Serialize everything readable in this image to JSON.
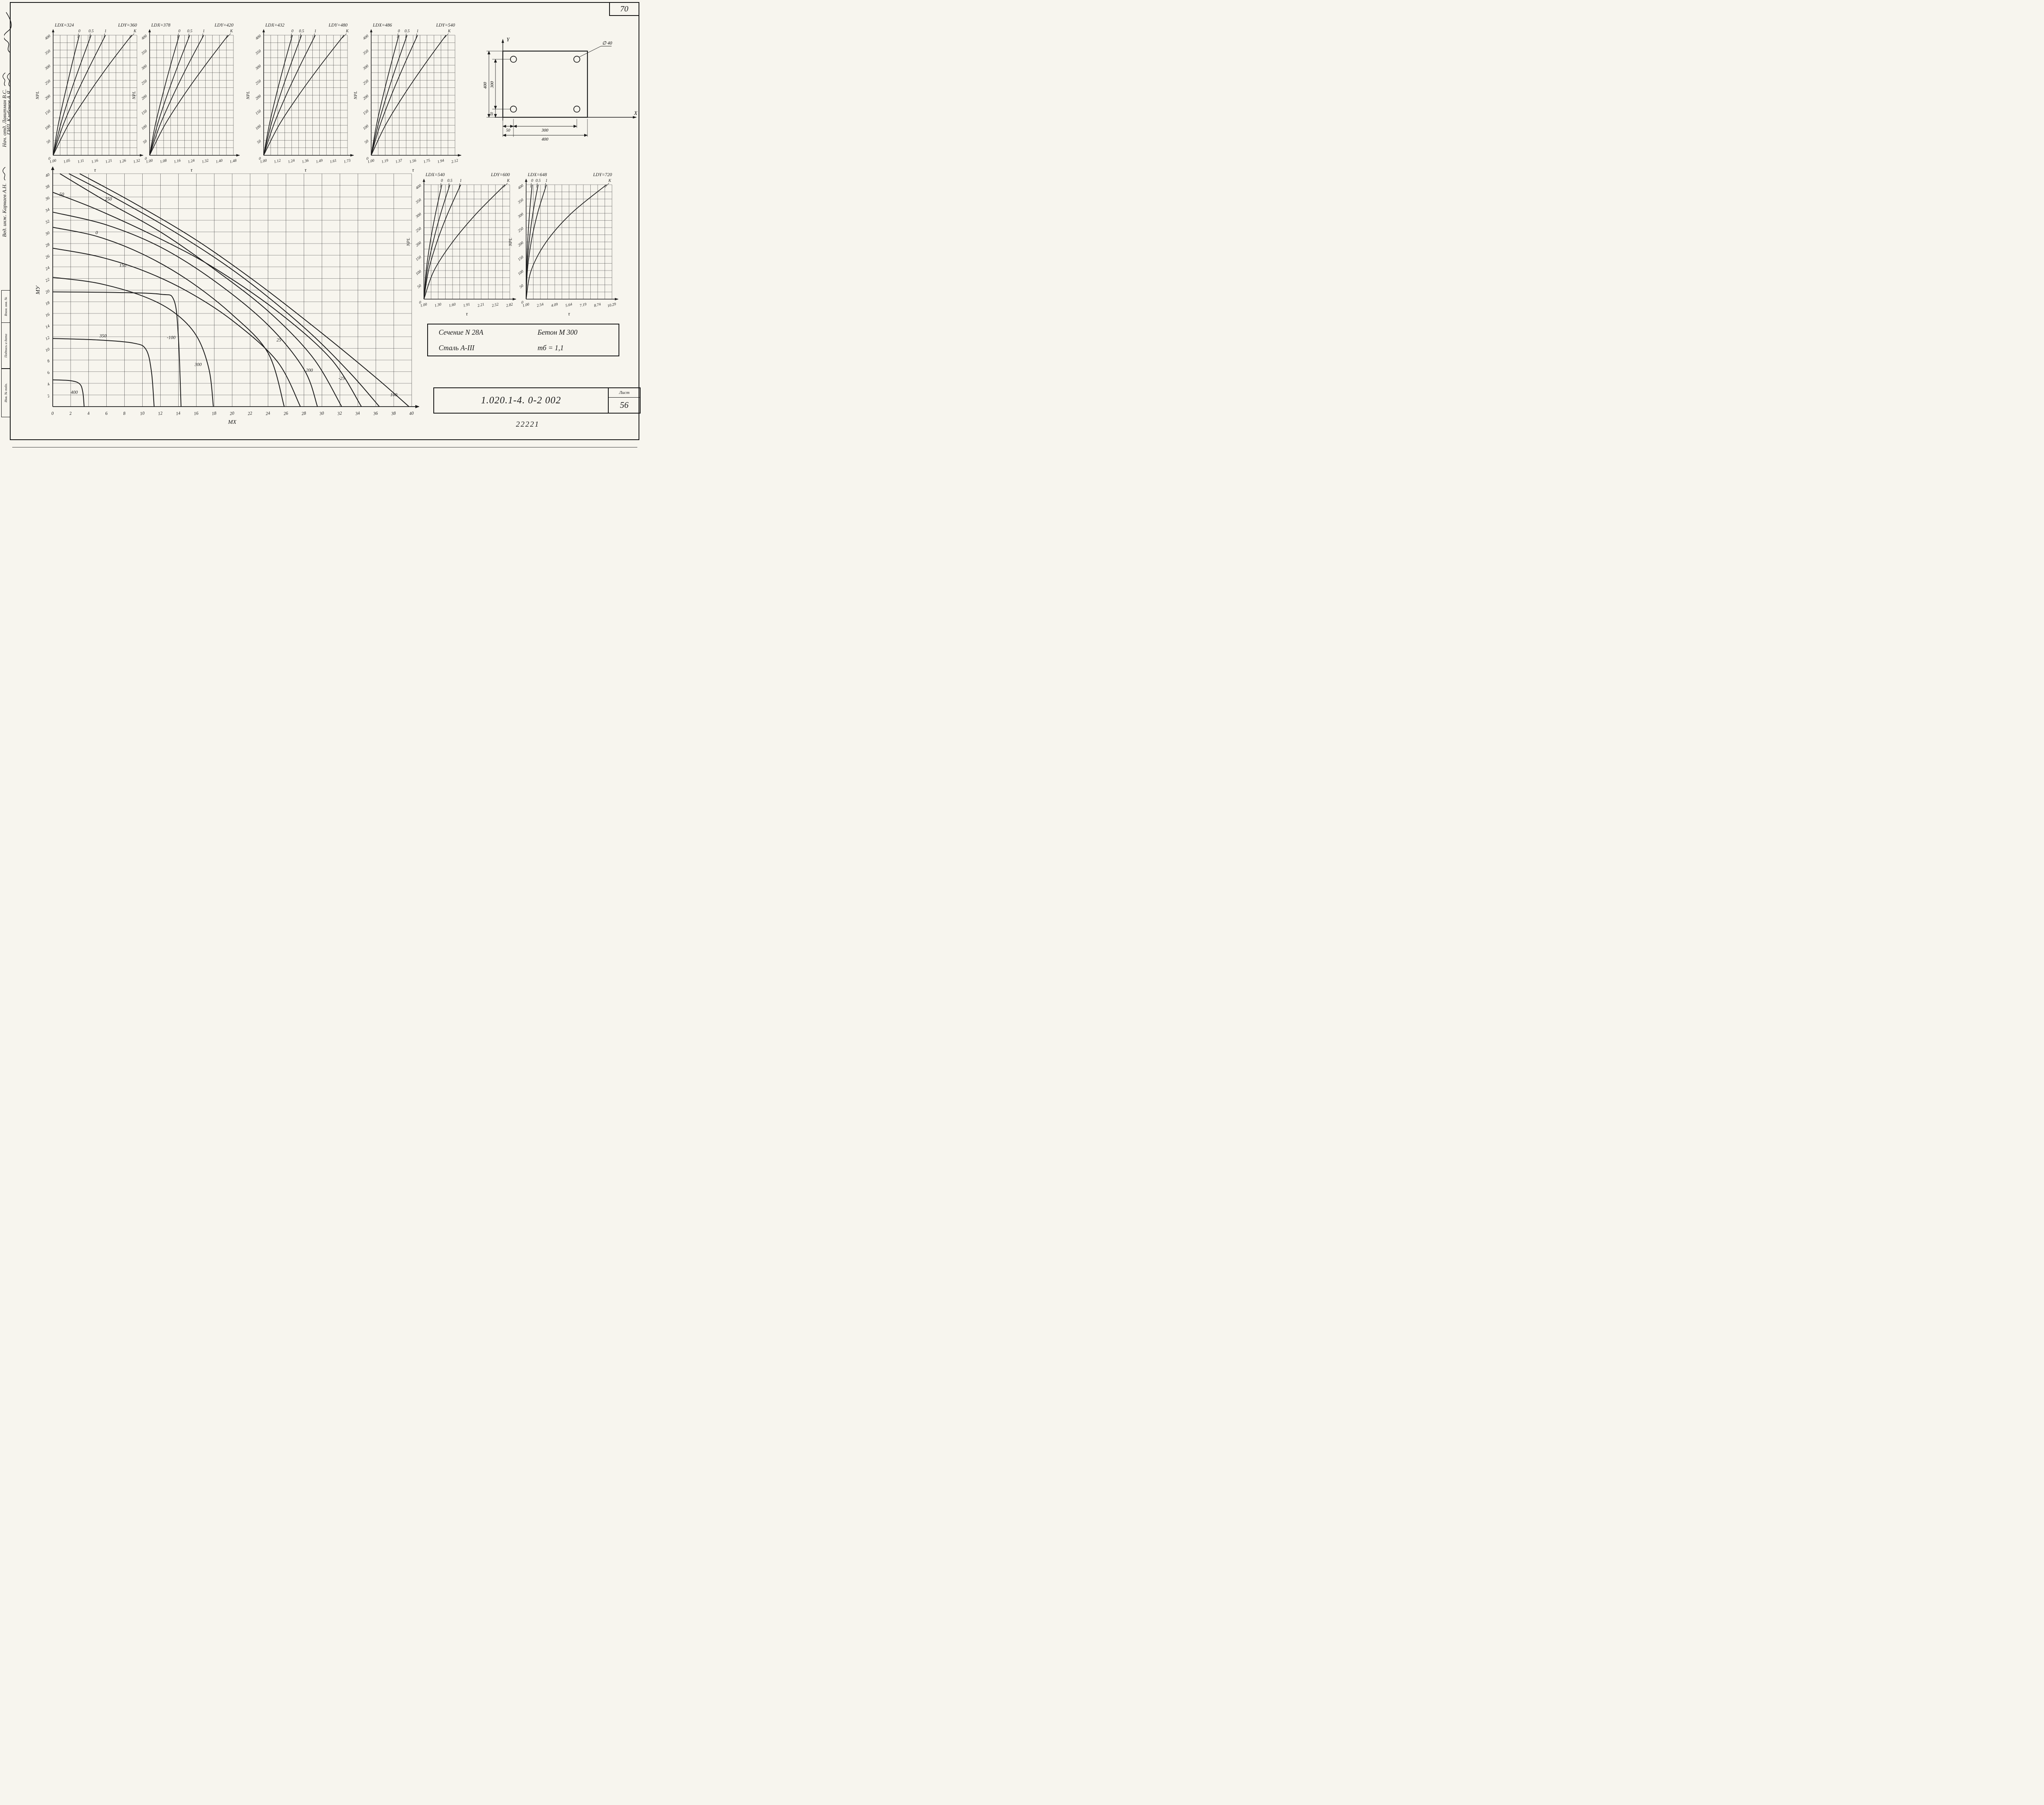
{
  "page": {
    "sheet_number": "70",
    "doc_number": "1.020.1-4. 0-2 002",
    "list_label": "Лист",
    "list_number": "56",
    "archive_number": "22221"
  },
  "left_margin": {
    "signatures": [
      {
        "text": "Нач. отд.   Лавитман В.С."
      },
      {
        "text": "Вед. инж.   Карнаев А.Н."
      },
      {
        "text": "ГИП.   Клебанов А.Я."
      }
    ],
    "stamp_cells": [
      "Взам. инв. №",
      "Подпись и дата",
      "Инв. № подл."
    ]
  },
  "info_box": {
    "cells": [
      "Сечение  N 28А",
      "Бетон  М 300",
      "Сталь  А-III",
      "mб = 1,1"
    ]
  },
  "section_diagram": {
    "axis_x": "X",
    "axis_y": "Y",
    "rebar_note": "∅ 40",
    "dims": {
      "height": "400",
      "inner_h": "300",
      "offset_y": "50",
      "offset_x": "50",
      "inner_w": "300",
      "width": "400"
    }
  },
  "chart_data": [
    {
      "id": "k1",
      "type": "line",
      "kind": "k-small",
      "title_left": "LDX=324",
      "title_right": "LDY=360",
      "xlabel": "τ",
      "ylabel": "NPL",
      "origin_label": "0",
      "x_range": [
        1.0,
        1.32
      ],
      "y_range": [
        0,
        400
      ],
      "x_ticks": [
        "1.00",
        "1.05",
        "1.11",
        "1.16",
        "1.21",
        "1.26",
        "1.32"
      ],
      "y_ticks": [
        50,
        100,
        150,
        200,
        250,
        300,
        350,
        400
      ],
      "series_y": [
        0,
        100,
        200,
        300,
        400
      ],
      "series": [
        {
          "name": "0",
          "x": [
            1.0,
            1.019,
            1.044,
            1.071,
            1.1
          ]
        },
        {
          "name": "0.5",
          "x": [
            1.0,
            1.028,
            1.063,
            1.103,
            1.145
          ]
        },
        {
          "name": "1",
          "x": [
            1.0,
            1.038,
            1.087,
            1.142,
            1.2
          ]
        },
        {
          "name": "К",
          "x": [
            1.0,
            1.057,
            1.131,
            1.212,
            1.3
          ]
        }
      ]
    },
    {
      "id": "k2",
      "type": "line",
      "kind": "k-small",
      "title_left": "LDX=378",
      "title_right": "LDY=420",
      "xlabel": "τ",
      "ylabel": "NPL",
      "origin_label": "0",
      "x_range": [
        1.0,
        1.48
      ],
      "y_range": [
        0,
        400
      ],
      "x_ticks": [
        "1.00",
        "1.08",
        "1.16",
        "1.24",
        "1.32",
        "1.40",
        "1.48"
      ],
      "y_ticks": [
        50,
        100,
        150,
        200,
        250,
        300,
        350,
        400
      ],
      "series_y": [
        0,
        100,
        200,
        300,
        400
      ],
      "series": [
        {
          "name": "0",
          "x": [
            1.0,
            1.032,
            1.074,
            1.12,
            1.17
          ]
        },
        {
          "name": "0.5",
          "x": [
            1.0,
            1.044,
            1.1,
            1.163,
            1.23
          ]
        },
        {
          "name": "1",
          "x": [
            1.0,
            1.059,
            1.135,
            1.219,
            1.31
          ]
        },
        {
          "name": "К",
          "x": [
            1.0,
            1.086,
            1.196,
            1.319,
            1.45
          ]
        }
      ]
    },
    {
      "id": "k3",
      "type": "line",
      "kind": "k-small",
      "title_left": "LDX=432",
      "title_right": "LDY=480",
      "xlabel": "τ",
      "ylabel": "NPL",
      "origin_label": "0",
      "x_range": [
        1.0,
        1.73
      ],
      "y_range": [
        0,
        400
      ],
      "x_ticks": [
        "1.00",
        "1.12",
        "1.24",
        "1.36",
        "1.49",
        "1.61",
        "1.73"
      ],
      "y_ticks": [
        50,
        100,
        150,
        200,
        250,
        300,
        350,
        400
      ],
      "series_y": [
        0,
        100,
        200,
        300,
        400
      ],
      "series": [
        {
          "name": "0",
          "x": [
            1.0,
            1.048,
            1.109,
            1.177,
            1.25
          ]
        },
        {
          "name": "0.5",
          "x": [
            1.0,
            1.063,
            1.144,
            1.234,
            1.33
          ]
        },
        {
          "name": "1",
          "x": [
            1.0,
            1.086,
            1.196,
            1.319,
            1.45
          ]
        },
        {
          "name": "К",
          "x": [
            1.0,
            1.133,
            1.305,
            1.496,
            1.7
          ]
        }
      ]
    },
    {
      "id": "k4",
      "type": "line",
      "kind": "k-small",
      "title_left": "LDX=486",
      "title_right": "LDY=540",
      "xlabel": "τ",
      "ylabel": "NPL",
      "origin_label": "0",
      "x_range": [
        1.0,
        2.12
      ],
      "y_range": [
        0,
        400
      ],
      "x_ticks": [
        "1.00",
        "1.19",
        "1.37",
        "1.56",
        "1.75",
        "1.94",
        "2.12"
      ],
      "y_ticks": [
        50,
        100,
        150,
        200,
        250,
        300,
        350,
        400
      ],
      "series_y": [
        0,
        100,
        200,
        300,
        400
      ],
      "series": [
        {
          "name": "0",
          "x": [
            1.0,
            1.07,
            1.161,
            1.262,
            1.37
          ]
        },
        {
          "name": "0.5",
          "x": [
            1.0,
            1.091,
            1.209,
            1.34,
            1.48
          ]
        },
        {
          "name": "1",
          "x": [
            1.0,
            1.118,
            1.27,
            1.439,
            1.62
          ]
        },
        {
          "name": "К",
          "x": [
            1.0,
            1.19,
            1.435,
            1.708,
            2.0
          ]
        }
      ]
    },
    {
      "id": "k5",
      "type": "line",
      "kind": "k-small",
      "title_left": "LDX=540",
      "title_right": "LDY=600",
      "xlabel": "τ",
      "ylabel": "NPL",
      "origin_label": "0",
      "x_range": [
        1.0,
        2.82
      ],
      "y_range": [
        0,
        400
      ],
      "x_ticks": [
        "1.00",
        "1.30",
        "1.60",
        "1.91",
        "2.21",
        "2.52",
        "2.82"
      ],
      "y_ticks": [
        50,
        100,
        150,
        200,
        250,
        300,
        350,
        400
      ],
      "series_y": [
        0,
        100,
        200,
        300,
        400
      ],
      "series": [
        {
          "name": "0",
          "x": [
            1.0,
            1.048,
            1.134,
            1.247,
            1.38
          ]
        },
        {
          "name": "0.5",
          "x": [
            1.0,
            1.069,
            1.195,
            1.357,
            1.55
          ]
        },
        {
          "name": "1",
          "x": [
            1.0,
            1.098,
            1.276,
            1.507,
            1.78
          ]
        },
        {
          "name": "К",
          "x": [
            1.0,
            1.215,
            1.609,
            2.118,
            2.72
          ]
        }
      ]
    },
    {
      "id": "k6",
      "type": "line",
      "kind": "k-small",
      "title_left": "LDX=648",
      "title_right": "LDY=720",
      "xlabel": "τ",
      "ylabel": "NPL",
      "origin_label": "0",
      "x_range": [
        1.0,
        10.29
      ],
      "y_range": [
        0,
        400
      ],
      "x_ticks": [
        "1.00",
        "2.54",
        "4.09",
        "5.64",
        "7.19",
        "8.74",
        "10.29"
      ],
      "y_ticks": [
        50,
        100,
        150,
        200,
        250,
        300,
        350,
        400
      ],
      "series_y": [
        0,
        100,
        200,
        300,
        400
      ],
      "series": [
        {
          "name": "0",
          "x": [
            1.0,
            1.041,
            1.163,
            1.366,
            1.65
          ]
        },
        {
          "name": "0.5",
          "x": [
            1.0,
            1.081,
            1.325,
            1.731,
            2.3
          ]
        },
        {
          "name": "1",
          "x": [
            1.0,
            1.138,
            1.55,
            2.238,
            3.2
          ]
        },
        {
          "name": "К",
          "x": [
            1.0,
            1.544,
            3.175,
            5.894,
            9.7
          ]
        }
      ]
    },
    {
      "id": "main",
      "type": "line",
      "kind": "mx-my",
      "xlabel": "МХ",
      "ylabel": "МУ",
      "x_range": [
        0,
        40
      ],
      "y_range": [
        0,
        40
      ],
      "x_ticks": [
        0,
        2,
        4,
        6,
        8,
        10,
        12,
        14,
        16,
        18,
        20,
        22,
        24,
        26,
        28,
        30,
        32,
        34,
        36,
        38,
        40
      ],
      "y_ticks": [
        2,
        4,
        6,
        8,
        10,
        12,
        14,
        16,
        18,
        20,
        22,
        24,
        26,
        28,
        30,
        32,
        34,
        36,
        38,
        40
      ],
      "series": [
        {
          "name": "400",
          "points": [
            [
              0,
              4.6
            ],
            [
              2,
              4.45
            ],
            [
              3,
              3.9
            ],
            [
              3.35,
              2.5
            ],
            [
              3.5,
              0
            ]
          ]
        },
        {
          "name": "350",
          "points": [
            [
              0,
              11.7
            ],
            [
              5,
              11.45
            ],
            [
              9,
              10.9
            ],
            [
              10.4,
              9.8
            ],
            [
              11,
              6
            ],
            [
              11.3,
              0
            ]
          ]
        },
        {
          "name": "-100",
          "points": [
            [
              0,
              19.7
            ],
            [
              7,
              19.6
            ],
            [
              12,
              19.3
            ],
            [
              13.5,
              18.3
            ],
            [
              14,
              12
            ],
            [
              14.3,
              0
            ]
          ]
        },
        {
          "name": "300",
          "points": [
            [
              0,
              22.2
            ],
            [
              5,
              21.2
            ],
            [
              10,
              19
            ],
            [
              13.5,
              16.2
            ],
            [
              16,
              12.2
            ],
            [
              17.4,
              6.5
            ],
            [
              17.9,
              0
            ]
          ]
        },
        {
          "name": "150",
          "points": [
            [
              0,
              27.2
            ],
            [
              5,
              25.8
            ],
            [
              10,
              23.4
            ],
            [
              15,
              19.8
            ],
            [
              20,
              14.8
            ],
            [
              25,
              7.8
            ],
            [
              27.6,
              0
            ]
          ]
        },
        {
          "name": "0",
          "points": [
            [
              0,
              30.8
            ],
            [
              5,
              29.2
            ],
            [
              10,
              26.2
            ],
            [
              15,
              21.8
            ],
            [
              20,
              15.8
            ],
            [
              24,
              9.2
            ],
            [
              25.8,
              0
            ]
          ]
        },
        {
          "name": "25",
          "points": [
            [
              0,
              33.4
            ],
            [
              6,
              31.2
            ],
            [
              12,
              27.4
            ],
            [
              18,
              21.6
            ],
            [
              24,
              14
            ],
            [
              28,
              6.4
            ],
            [
              29.5,
              0
            ]
          ]
        },
        {
          "name": "200",
          "points": [
            [
              0.8,
              40
            ],
            [
              6,
              35.2
            ],
            [
              12,
              30
            ],
            [
              18,
              23.6
            ],
            [
              24,
              16.4
            ],
            [
              29,
              8.4
            ],
            [
              32.2,
              0
            ]
          ]
        },
        {
          "name": "50",
          "points": [
            [
              0,
              36.8
            ],
            [
              5,
              33.8
            ],
            [
              12,
              28.8
            ],
            [
              18,
              23.8
            ],
            [
              25,
              16.4
            ],
            [
              31,
              8.2
            ],
            [
              34.4,
              0
            ]
          ]
        },
        {
          "name": "250",
          "points": [
            [
              1.8,
              40
            ],
            [
              7,
              35.8
            ],
            [
              14,
              29.6
            ],
            [
              21,
              22.4
            ],
            [
              28,
              13.6
            ],
            [
              33,
              6
            ],
            [
              36.4,
              0
            ]
          ]
        },
        {
          "name": "100",
          "points": [
            [
              3,
              40
            ],
            [
              9,
              35
            ],
            [
              16,
              28.6
            ],
            [
              23,
              21
            ],
            [
              30,
              12.6
            ],
            [
              36,
              5
            ],
            [
              39.7,
              0
            ]
          ]
        }
      ],
      "labels": [
        {
          "text": "50",
          "x": 1.0,
          "y": 36.2
        },
        {
          "text": "250",
          "x": 6.2,
          "y": 35.4
        },
        {
          "text": "0",
          "x": 4.9,
          "y": 29.6
        },
        {
          "text": "150",
          "x": 7.8,
          "y": 24.0
        },
        {
          "text": "350",
          "x": 5.6,
          "y": 11.9
        },
        {
          "text": "-100",
          "x": 13.2,
          "y": 11.6
        },
        {
          "text": "300",
          "x": 16.2,
          "y": 7.0
        },
        {
          "text": "25",
          "x": 25.2,
          "y": 11.2
        },
        {
          "text": "200",
          "x": 28.6,
          "y": 6.0
        },
        {
          "text": "-25",
          "x": 32.2,
          "y": 4.6
        },
        {
          "text": "100",
          "x": 38.0,
          "y": 1.8
        },
        {
          "text": "400",
          "x": 2.4,
          "y": 2.2
        }
      ]
    }
  ]
}
